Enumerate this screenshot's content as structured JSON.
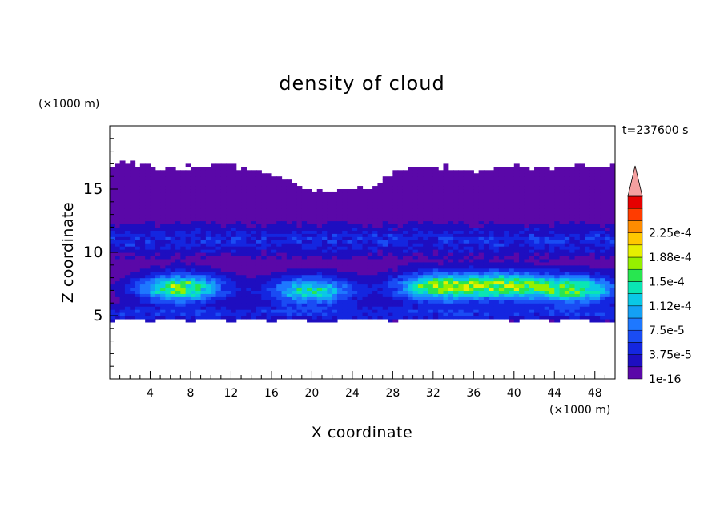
{
  "chart_data": {
    "type": "heatmap",
    "title": "density of cloud",
    "xlabel": "X coordinate",
    "ylabel": "Z coordinate",
    "x_unit": "(×1000 m)",
    "y_unit": "(×1000 m)",
    "time_label": "t=237600 s",
    "xlim": [
      0,
      50
    ],
    "ylim": [
      0,
      20
    ],
    "x_ticks": [
      4,
      8,
      12,
      16,
      20,
      24,
      28,
      32,
      36,
      40,
      44,
      48
    ],
    "y_ticks": [
      5,
      10,
      15
    ],
    "colorbar": {
      "levels": [
        "1e-16",
        "1.875e-5",
        "3.75e-5",
        "5.625e-5",
        "7.5e-5",
        "9.375e-5",
        "1.12e-4",
        "1.31e-4",
        "1.5e-4",
        "1.69e-4",
        "1.88e-4",
        "2.06e-4",
        "2.25e-4",
        "2.44e-4"
      ],
      "labels": [
        "1e-16",
        "3.75e-5",
        "7.5e-5",
        "1.12e-4",
        "1.5e-4",
        "1.88e-4",
        "2.25e-4"
      ],
      "colors": [
        "#5a08a8",
        "#1e0ec0",
        "#1426e0",
        "#1a4cf4",
        "#1e78ff",
        "#14a0f4",
        "#0ac8e6",
        "#0ae6b4",
        "#28e650",
        "#96f000",
        "#e6f000",
        "#ffc800",
        "#ff8c00",
        "#ff3c00",
        "#e60000"
      ],
      "extend_color": "#f4a0a0",
      "extend": "max"
    },
    "cloud": {
      "top_km": [
        17.0,
        17.1,
        16.9,
        16.6,
        16.7,
        16.9,
        16.8,
        16.5,
        16.2,
        15.6,
        14.9,
        14.8,
        15.0,
        15.2,
        16.3,
        16.8,
        16.9,
        16.6,
        16.4,
        16.6,
        16.8,
        16.7,
        16.8,
        16.9,
        16.8,
        16.9
      ],
      "base_km": [
        4.6,
        4.7,
        4.6,
        4.7,
        4.6,
        4.7,
        4.6,
        4.7,
        4.6,
        4.7,
        4.6,
        4.6,
        4.7,
        4.7,
        4.6,
        4.7,
        4.7,
        4.7,
        4.7,
        4.7,
        4.6,
        4.7,
        4.6,
        4.7,
        4.6,
        4.6
      ],
      "cores": [
        {
          "x": 7,
          "z": 7.2,
          "peak": 0.00016
        },
        {
          "x": 20,
          "z": 7.0,
          "peak": 0.00013
        },
        {
          "x": 32.5,
          "z": 7.3,
          "peak": 0.00016
        },
        {
          "x": 39,
          "z": 7.4,
          "peak": 0.00015
        },
        {
          "x": 46,
          "z": 7.1,
          "peak": 0.00015
        }
      ]
    }
  }
}
